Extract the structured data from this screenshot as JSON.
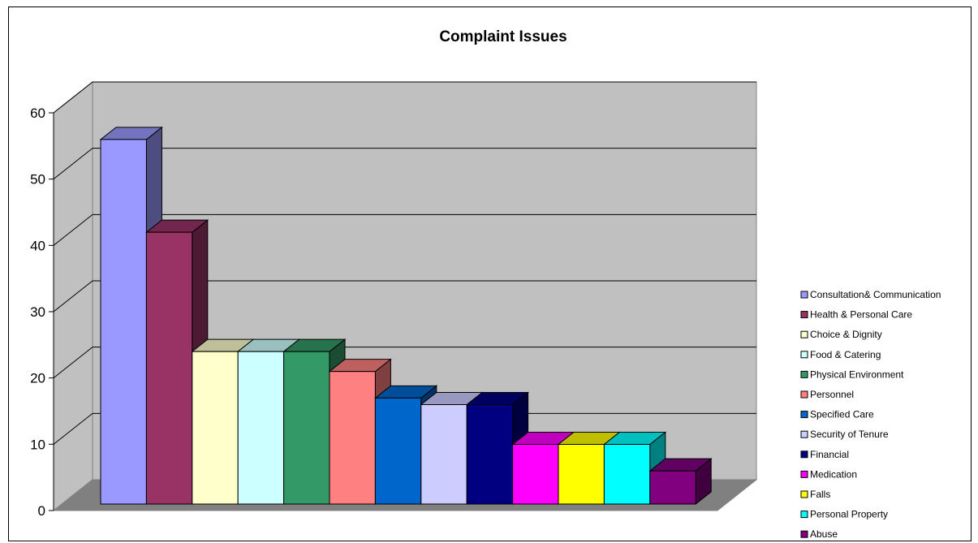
{
  "chart_data": {
    "type": "bar",
    "title": "Complaint Issues",
    "xlabel": "",
    "ylabel": "",
    "ylim": [
      0,
      60
    ],
    "yticks": [
      "0",
      "10",
      "20",
      "30",
      "40",
      "50",
      "60"
    ],
    "grid": true,
    "legend_position": "right",
    "three_d": true,
    "categories": [
      "Consultation& Communication",
      "Health & Personal Care",
      "Choice & Dignity",
      "Food & Catering",
      "Physical Environment",
      "Personnel",
      "Specified Care",
      "Security of Tenure",
      "Financial",
      "Medication",
      "Falls",
      "Personal Property",
      "Abuse"
    ],
    "values": [
      55,
      41,
      23,
      23,
      23,
      20,
      16,
      15,
      15,
      9,
      9,
      9,
      5
    ],
    "colors": [
      "#9999ff",
      "#993366",
      "#ffffcc",
      "#ccffff",
      "#339966",
      "#ff8080",
      "#0066cc",
      "#ccccff",
      "#000080",
      "#ff00ff",
      "#ffff00",
      "#00ffff",
      "#800080"
    ]
  }
}
